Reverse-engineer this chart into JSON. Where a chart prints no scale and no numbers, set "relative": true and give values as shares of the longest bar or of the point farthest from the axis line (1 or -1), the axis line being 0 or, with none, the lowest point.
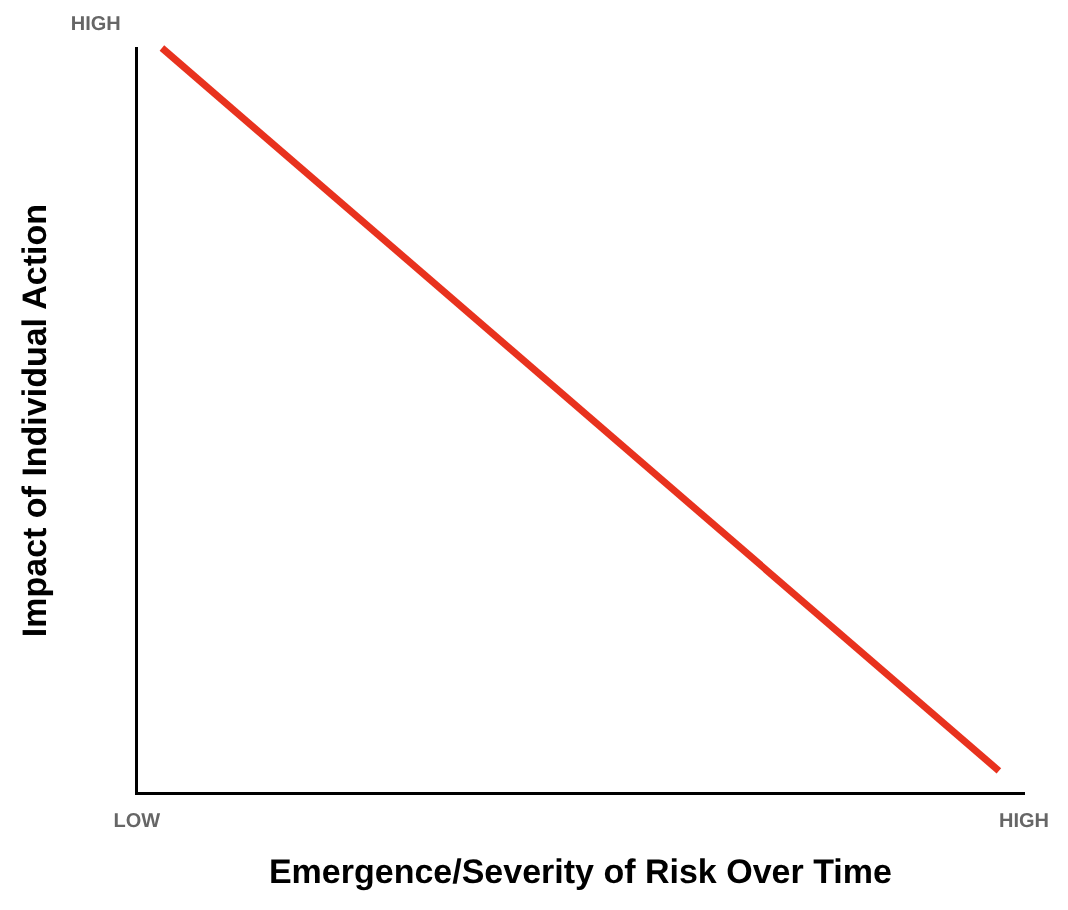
{
  "chart_data": {
    "type": "line",
    "xlabel": "Emergence/Severity of Risk Over Time",
    "ylabel": "Impact of Individual Action",
    "categories": [
      null,
      null
    ],
    "relative": true,
    "series": [
      {
        "color": "#e8321e",
        "values": [
          1,
          0.03
        ]
      }
    ],
    "annotations": [
      "HIGH",
      "LOW",
      "HIGH"
    ],
    "marker": "none",
    "line_style": "solid",
    "grid": false,
    "legend": false
  }
}
